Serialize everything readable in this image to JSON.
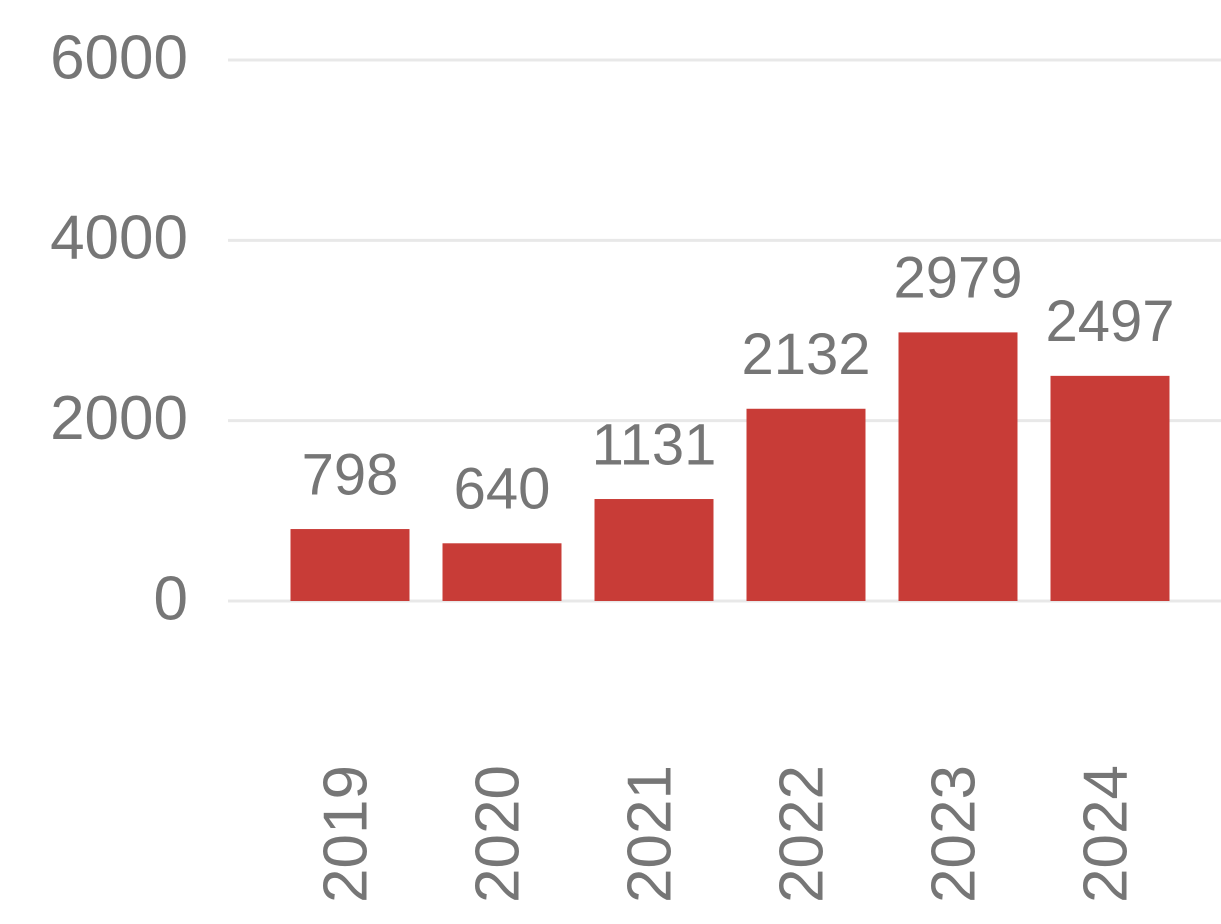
{
  "chart_data": {
    "type": "bar",
    "categories": [
      "2019",
      "2020",
      "2021",
      "2022",
      "2023",
      "2024"
    ],
    "values": [
      798,
      640,
      1131,
      2132,
      2979,
      2497
    ],
    "color": "#c83c37",
    "ylim": [
      0,
      6000
    ],
    "yticks": [
      0,
      2000,
      4000,
      6000
    ],
    "grid": true
  }
}
